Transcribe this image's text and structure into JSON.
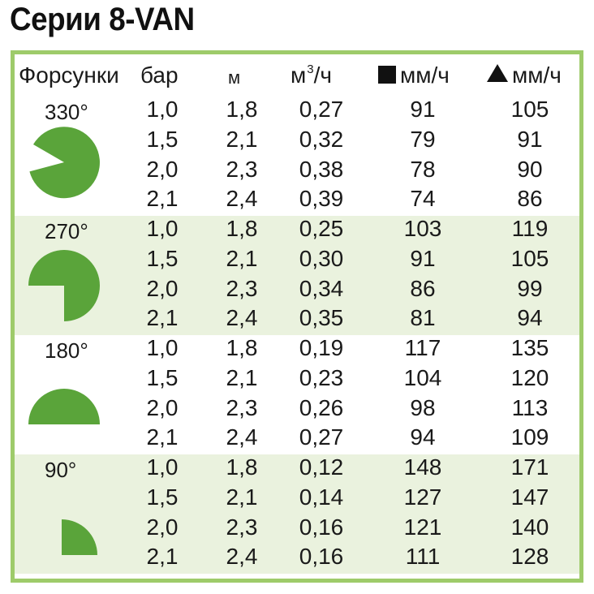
{
  "title": "Серии 8-VAN",
  "header": {
    "nozzles": "Форсунки",
    "bar": "бар",
    "m": "м",
    "flow_base": "м",
    "flow_sup": "3",
    "flow_suffix": "/ч",
    "square_rate": "мм/ч",
    "triangle_rate": "мм/ч"
  },
  "colors": {
    "accent": "#5aa43a",
    "frame": "#9ecb6a",
    "shade": "#eaf2de"
  },
  "groups": [
    {
      "angle": "330°",
      "icon": "sector-330-icon",
      "rows": [
        {
          "bar": "1,0",
          "m": "1,8",
          "flow": "0,27",
          "sq": "91",
          "tri": "105"
        },
        {
          "bar": "1,5",
          "m": "2,1",
          "flow": "0,32",
          "sq": "79",
          "tri": "91"
        },
        {
          "bar": "2,0",
          "m": "2,3",
          "flow": "0,38",
          "sq": "78",
          "tri": "90"
        },
        {
          "bar": "2,1",
          "m": "2,4",
          "flow": "0,39",
          "sq": "74",
          "tri": "86"
        }
      ]
    },
    {
      "angle": "270°",
      "icon": "sector-270-icon",
      "rows": [
        {
          "bar": "1,0",
          "m": "1,8",
          "flow": "0,25",
          "sq": "103",
          "tri": "119"
        },
        {
          "bar": "1,5",
          "m": "2,1",
          "flow": "0,30",
          "sq": "91",
          "tri": "105"
        },
        {
          "bar": "2,0",
          "m": "2,3",
          "flow": "0,34",
          "sq": "86",
          "tri": "99"
        },
        {
          "bar": "2,1",
          "m": "2,4",
          "flow": "0,35",
          "sq": "81",
          "tri": "94"
        }
      ]
    },
    {
      "angle": "180°",
      "icon": "sector-180-icon",
      "rows": [
        {
          "bar": "1,0",
          "m": "1,8",
          "flow": "0,19",
          "sq": "117",
          "tri": "135"
        },
        {
          "bar": "1,5",
          "m": "2,1",
          "flow": "0,23",
          "sq": "104",
          "tri": "120"
        },
        {
          "bar": "2,0",
          "m": "2,3",
          "flow": "0,26",
          "sq": "98",
          "tri": "113"
        },
        {
          "bar": "2,1",
          "m": "2,4",
          "flow": "0,27",
          "sq": "94",
          "tri": "109"
        }
      ]
    },
    {
      "angle": "90°",
      "icon": "sector-90-icon",
      "rows": [
        {
          "bar": "1,0",
          "m": "1,8",
          "flow": "0,12",
          "sq": "148",
          "tri": "171"
        },
        {
          "bar": "1,5",
          "m": "2,1",
          "flow": "0,14",
          "sq": "127",
          "tri": "147"
        },
        {
          "bar": "2,0",
          "m": "2,3",
          "flow": "0,16",
          "sq": "121",
          "tri": "140"
        },
        {
          "bar": "2,1",
          "m": "2,4",
          "flow": "0,16",
          "sq": "111",
          "tri": "128"
        }
      ]
    }
  ]
}
